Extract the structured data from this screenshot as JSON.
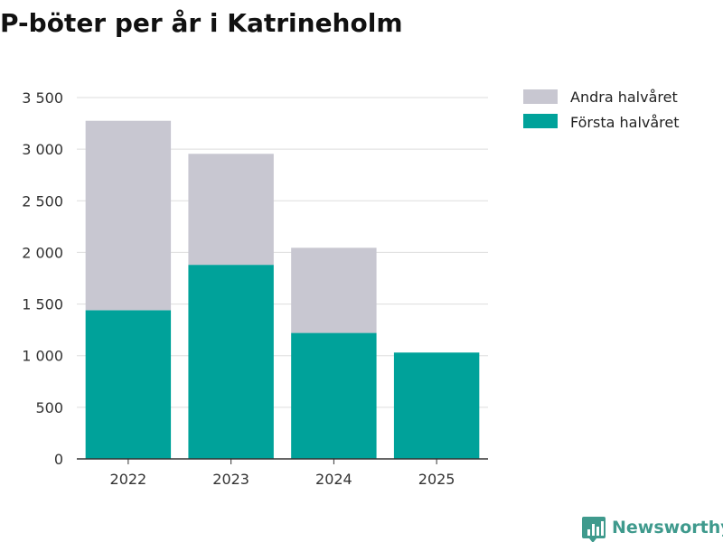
{
  "colors": {
    "first_half": "#00a29a",
    "second_half": "#c8c7d1",
    "grid": "#dddddd",
    "axis": "#333333",
    "brand": "#3f9a8d"
  },
  "brand": {
    "name": "Newsworthy",
    "icon": "bar-chart-speech-bubble-icon"
  },
  "chart_data": {
    "type": "bar",
    "stacked": true,
    "title": "P-böter per år i Katrineholm",
    "xlabel": "",
    "ylabel": "",
    "categories": [
      "2022",
      "2023",
      "2024",
      "2025"
    ],
    "series": [
      {
        "name": "Första halvåret",
        "values": [
          1440,
          1880,
          1220,
          1030
        ]
      },
      {
        "name": "Andra halvåret",
        "values": [
          1835,
          1075,
          825,
          0
        ]
      }
    ],
    "ylim": [
      0,
      3500
    ],
    "yticks": [
      0,
      500,
      1000,
      1500,
      2000,
      2500,
      3000,
      3500
    ],
    "ytick_labels": [
      "0",
      "500",
      "1 000",
      "1 500",
      "2 000",
      "2 500",
      "3 000",
      "3 500"
    ],
    "grid": true,
    "legend": {
      "position": "top-right",
      "entries": [
        "Andra halvåret",
        "Första halvåret"
      ]
    }
  }
}
